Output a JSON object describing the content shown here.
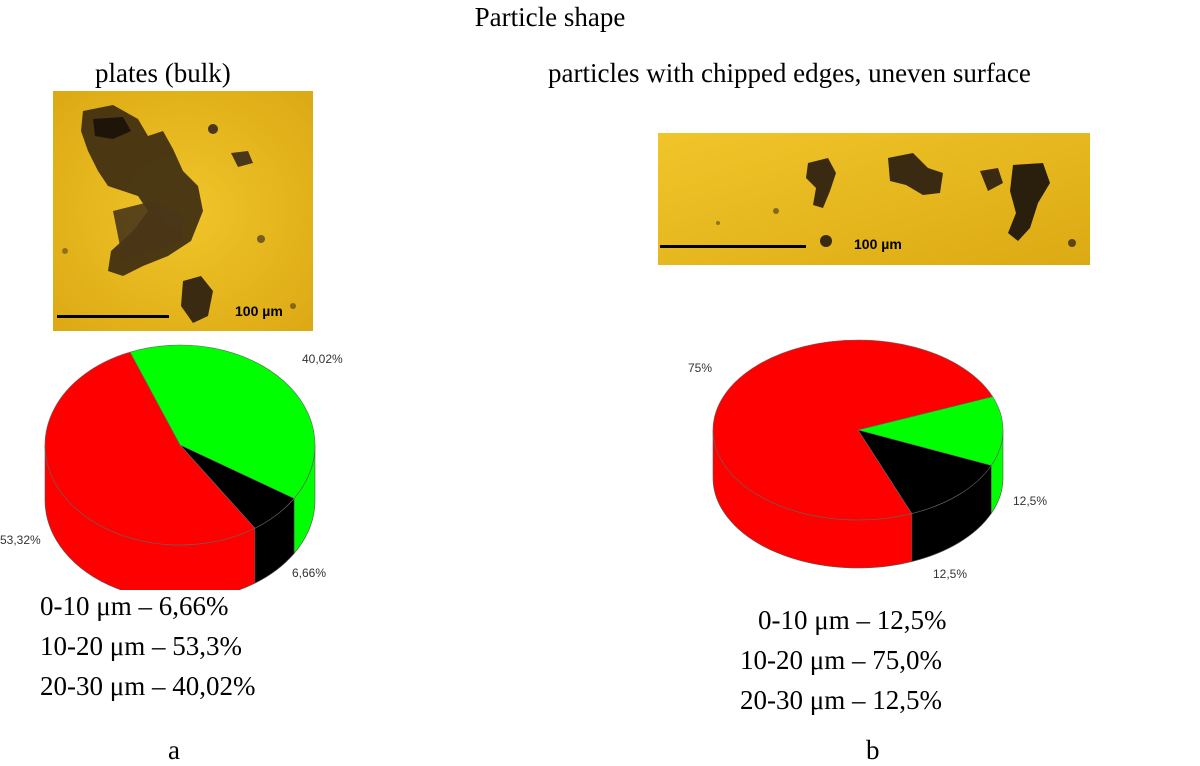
{
  "figure": {
    "title": "Particle shape",
    "scale_bar_label": "100 µm"
  },
  "panels": [
    {
      "id": "a",
      "title": "plates (bulk)",
      "legend": [
        "0-10 μm – 6,66%",
        "10-20 μm – 53,3%",
        "20-30 μm – 40,02%"
      ],
      "label": "a"
    },
    {
      "id": "b",
      "title": "particles with chipped edges, uneven surface",
      "legend": [
        "0-10 μm – 12,5%",
        "10-20 μm – 75,0%",
        "20-30 μm – 12,5%"
      ],
      "label": "b"
    }
  ],
  "colors": {
    "red": "#ff0000",
    "green": "#00ff00",
    "black": "#000000",
    "micro_bg": "#e8b81c",
    "particle": "#3a2a12"
  },
  "chart_data": [
    {
      "type": "pie",
      "title": "plates (bulk)",
      "categories": [
        "0-10 μm",
        "10-20 μm",
        "20-30 μm"
      ],
      "values": [
        6.66,
        53.32,
        40.02
      ],
      "data_labels": [
        "6,66%",
        "53,32%",
        "40,02%"
      ],
      "colors": [
        "#000000",
        "#ff0000",
        "#00ff00"
      ]
    },
    {
      "type": "pie",
      "title": "particles with chipped edges, uneven surface",
      "categories": [
        "0-10 μm",
        "10-20 μm",
        "20-30 μm"
      ],
      "values": [
        12.5,
        75,
        12.5
      ],
      "data_labels": [
        "12,5%",
        "75%",
        "12,5%"
      ],
      "colors": [
        "#000000",
        "#ff0000",
        "#00ff00"
      ]
    }
  ]
}
